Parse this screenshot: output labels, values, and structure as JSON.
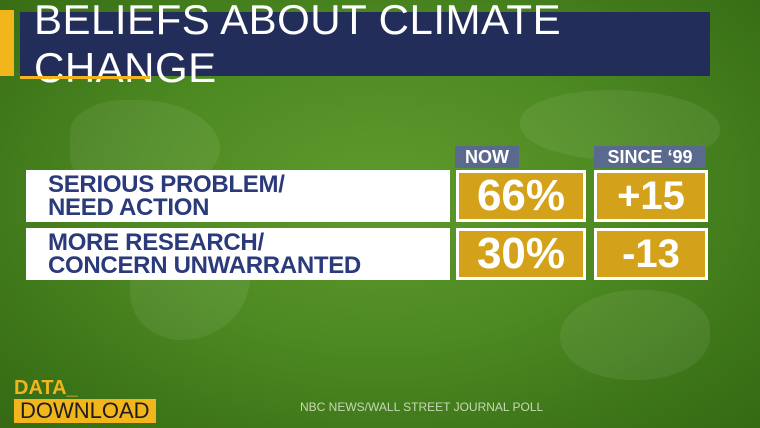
{
  "title": "BELIEFS ABOUT CLIMATE CHANGE",
  "colors": {
    "title_bg": "#222d5a",
    "accent": "#f2b51c",
    "cell_bg": "#d4a21a",
    "header_bg": "#5a6a8e",
    "label_text": "#2a3a7a"
  },
  "chart_data": {
    "type": "table",
    "title": "BELIEFS ABOUT CLIMATE CHANGE",
    "columns": [
      "NOW",
      "SINCE ‘99"
    ],
    "rows": [
      {
        "label_line1": "SERIOUS PROBLEM/",
        "label_line2": "NEED ACTION",
        "now": "66%",
        "since": "+15",
        "now_value": 66,
        "since_value": 15
      },
      {
        "label_line1": "MORE RESEARCH/",
        "label_line2": "CONCERN UNWARRANTED",
        "now": "30%",
        "since": "-13",
        "now_value": 30,
        "since_value": -13
      }
    ]
  },
  "logo": {
    "line1": "DATA_",
    "line2": "DOWNLOAD"
  },
  "source": "NBC NEWS/WALL STREET JOURNAL POLL"
}
